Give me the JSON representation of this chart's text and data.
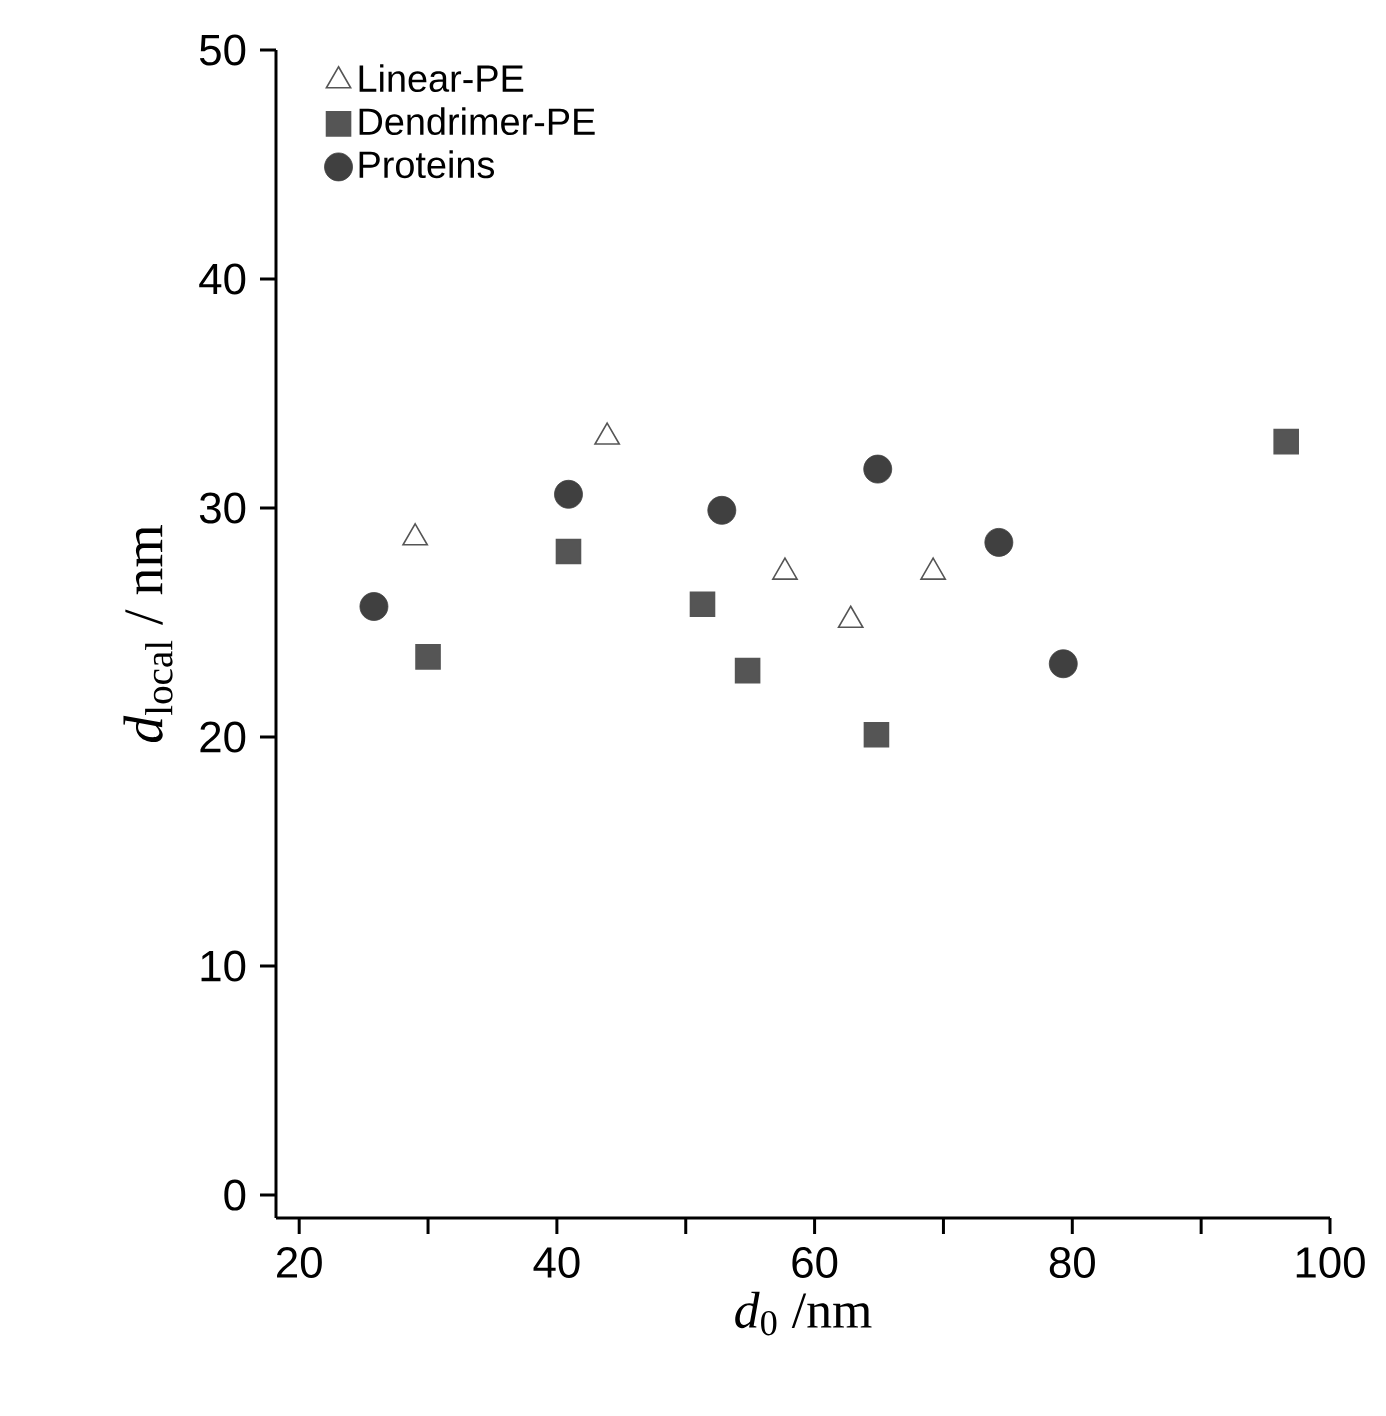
{
  "chart_data": {
    "type": "scatter",
    "xlabel": "*d*$_{0}$ /nm",
    "ylabel": "*d*$_{local}$ / nm",
    "xlim": [
      18.2,
      100
    ],
    "ylim": [
      -1,
      50
    ],
    "xticks": [
      20,
      {
        "value": 30,
        "label": null
      },
      40,
      {
        "value": 50,
        "label": null
      },
      60,
      {
        "value": 70,
        "label": null
      },
      80,
      {
        "value": 90,
        "label": null
      },
      100
    ],
    "yticks": [
      0,
      10,
      20,
      30,
      40,
      50
    ],
    "legend": "top left",
    "grid": false,
    "series": [
      {
        "name": "Linear-PE",
        "color": "#555555",
        "marker": "triangle",
        "x": [
          29.0,
          43.9,
          57.7,
          62.8,
          69.2
        ],
        "values": [
          28.7,
          33.1,
          27.2,
          25.1,
          27.2
        ]
      },
      {
        "name": "Dendrimer-PE",
        "color": "#555555",
        "marker": "square",
        "x": [
          30.0,
          40.9,
          51.3,
          54.8,
          64.8,
          96.6
        ],
        "values": [
          23.5,
          28.1,
          25.8,
          22.9,
          20.1,
          32.9
        ]
      },
      {
        "name": "Proteins",
        "color": "#404040",
        "marker": "circle",
        "x": [
          25.8,
          40.9,
          52.8,
          64.9,
          74.3,
          79.3
        ],
        "values": [
          25.7,
          30.6,
          29.9,
          31.7,
          28.5,
          23.2
        ]
      }
    ]
  }
}
